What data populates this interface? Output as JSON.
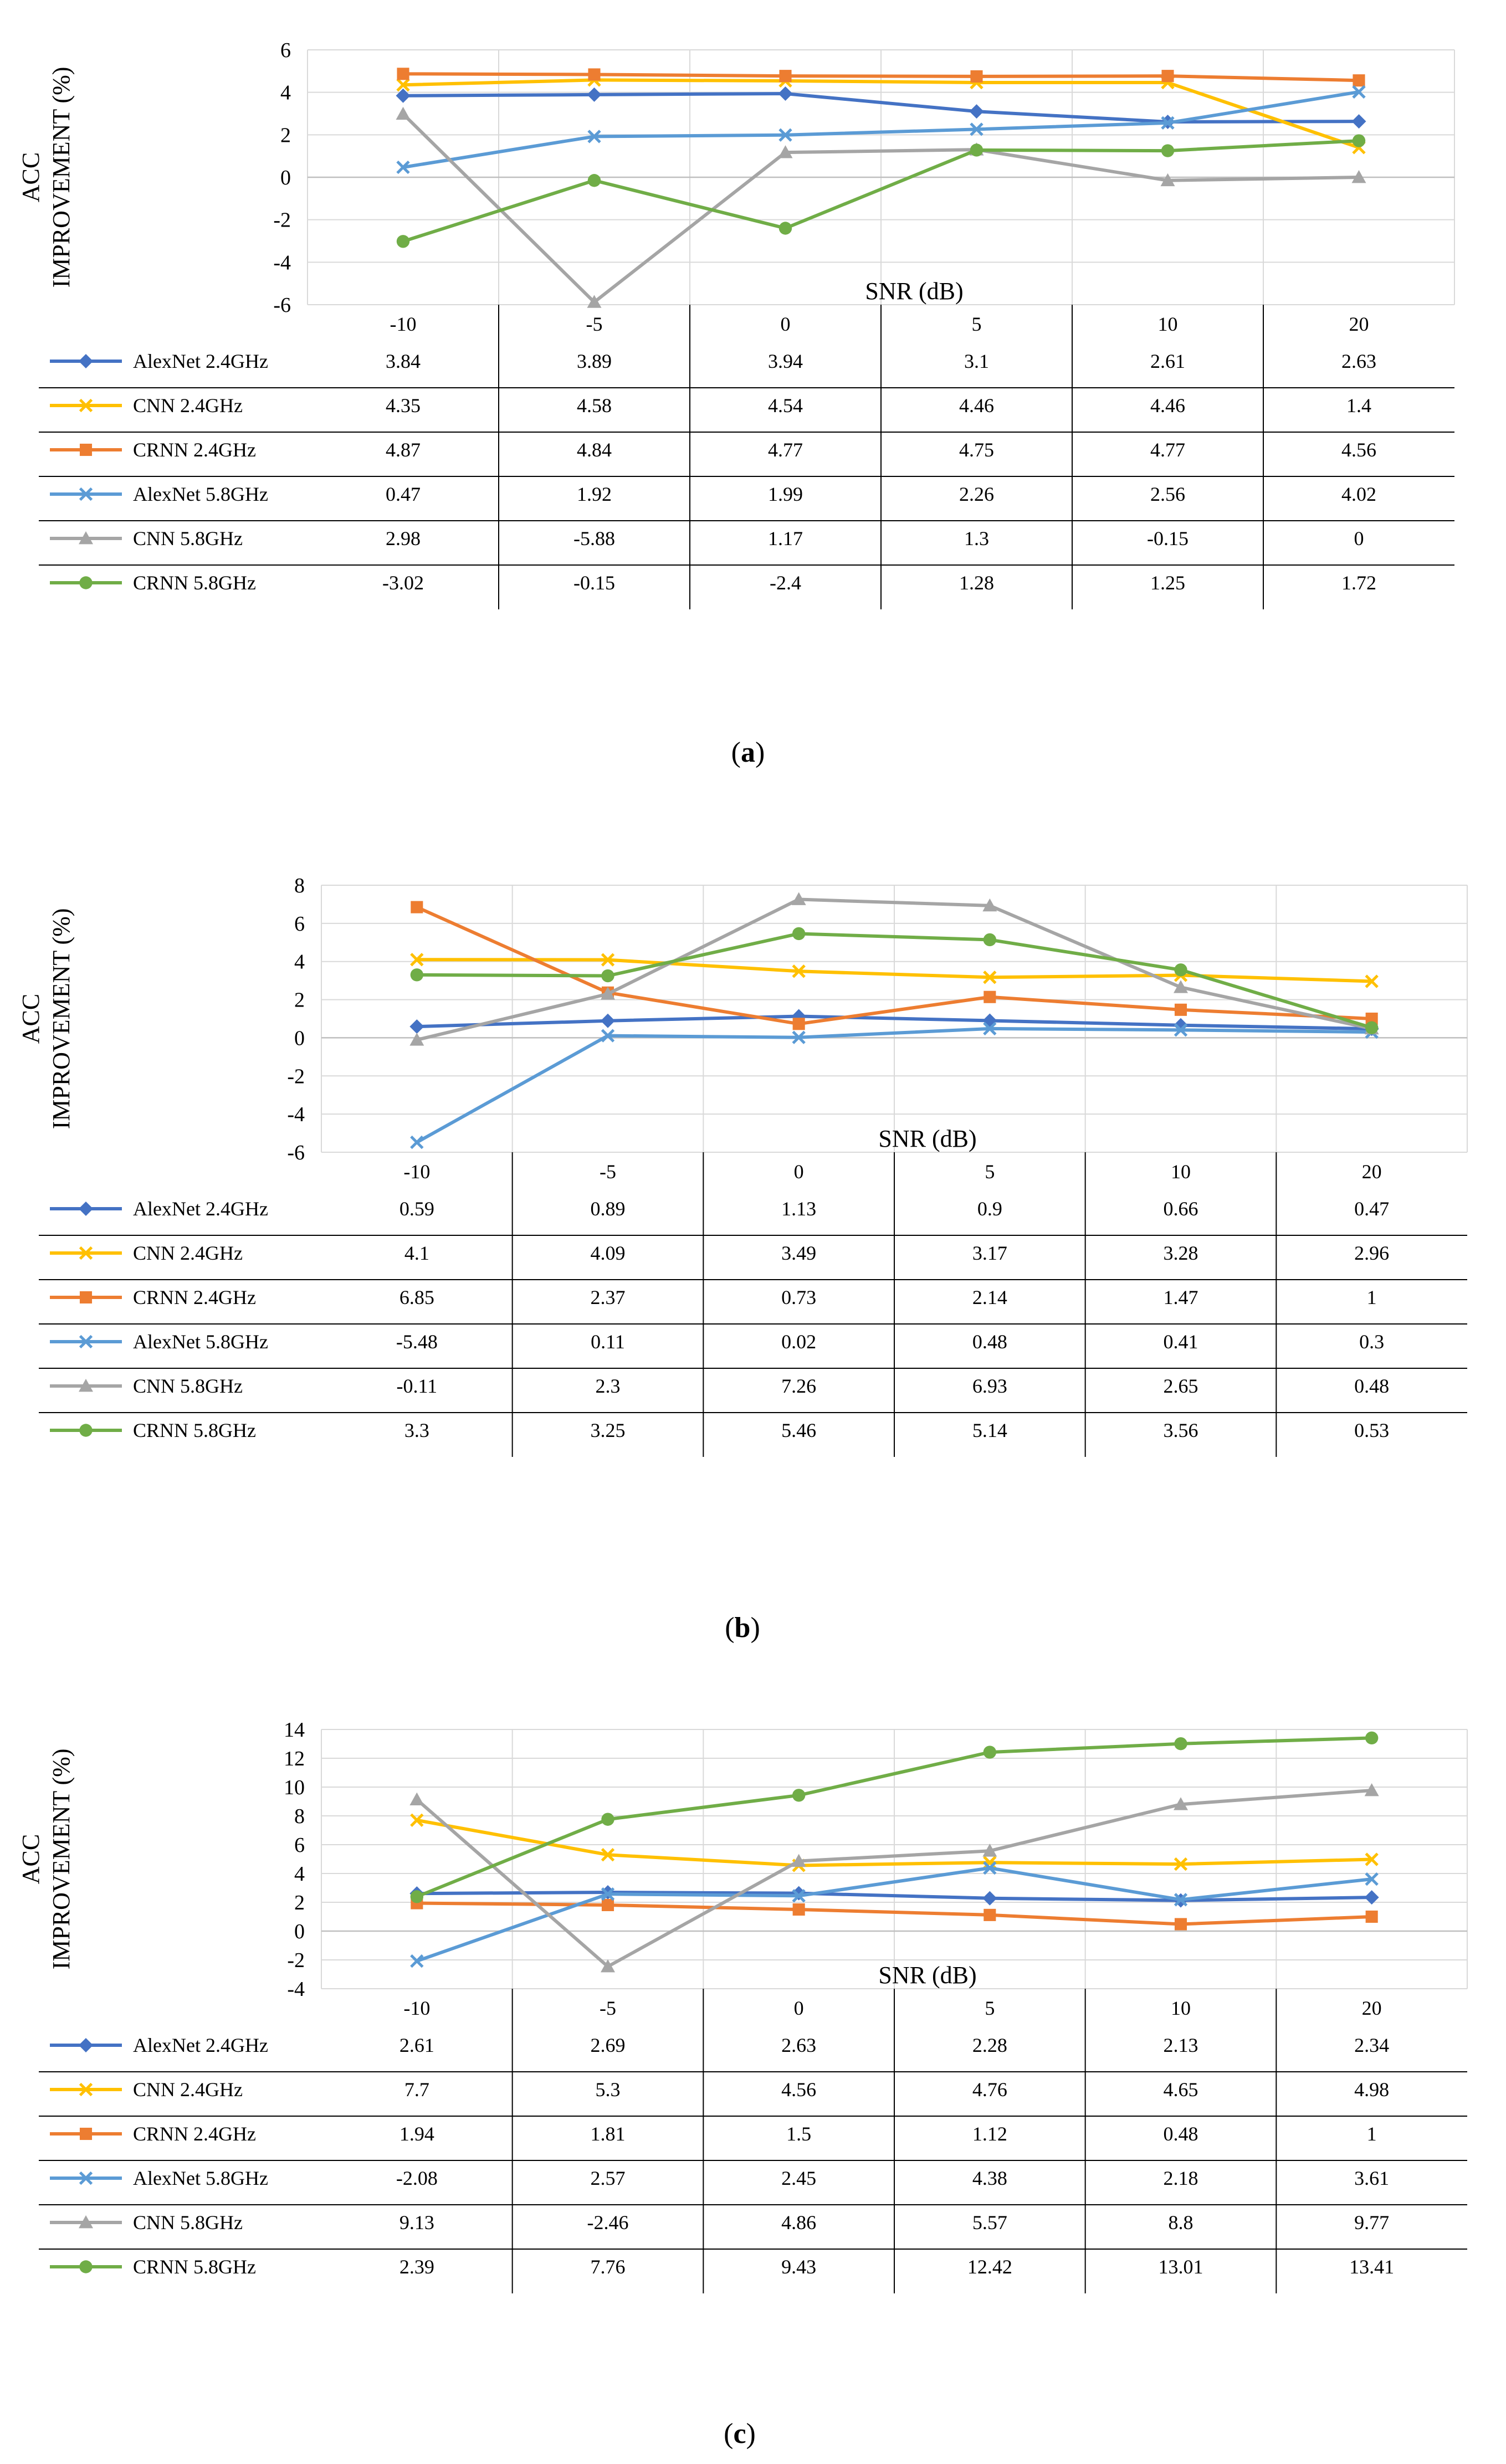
{
  "chart_data": [
    {
      "type": "line",
      "caption": "(a)",
      "caption_letter": "a",
      "ylabel_line1": "ACC",
      "ylabel_line2": "IMPROVEMENT (%)",
      "xlabel": "SNR (dB)",
      "categories": [
        "-10",
        "-5",
        "0",
        "5",
        "10",
        "20"
      ],
      "ylim": [
        -6,
        6
      ],
      "yticks": [
        -6,
        -4,
        -2,
        0,
        2,
        4,
        6
      ],
      "series": [
        {
          "name": "AlexNet 2.4GHz",
          "color": "#4472C4",
          "marker": "diamond",
          "labels": [
            "3.84",
            "3.89",
            "3.94",
            "3.1",
            "2.61",
            "2.63"
          ],
          "values": [
            3.84,
            3.89,
            3.94,
            3.1,
            2.61,
            2.63
          ]
        },
        {
          "name": "CNN 2.4GHz",
          "color": "#FFC000",
          "marker": "x",
          "labels": [
            "4.35",
            "4.58",
            "4.54",
            "4.46",
            "4.46",
            "1.4"
          ],
          "values": [
            4.35,
            4.58,
            4.54,
            4.46,
            4.46,
            1.4
          ]
        },
        {
          "name": "CRNN 2.4GHz",
          "color": "#ED7D31",
          "marker": "square",
          "labels": [
            "4.87",
            "4.84",
            "4.77",
            "4.75",
            "4.77",
            "4.56"
          ],
          "values": [
            4.87,
            4.84,
            4.77,
            4.75,
            4.77,
            4.56
          ]
        },
        {
          "name": "AlexNet 5.8GHz",
          "color": "#5B9BD5",
          "marker": "x",
          "labels": [
            "0.47",
            "1.92",
            "1.99",
            "2.26",
            "2.56",
            "4.02"
          ],
          "values": [
            0.47,
            1.92,
            1.99,
            2.26,
            2.56,
            4.02
          ]
        },
        {
          "name": "CNN 5.8GHz",
          "color": "#A5A5A5",
          "marker": "triangle",
          "labels": [
            "2.98",
            "-5.88",
            "1.17",
            "1.3",
            "-0.15",
            "0"
          ],
          "values": [
            2.98,
            -5.88,
            1.17,
            1.3,
            -0.15,
            0
          ]
        },
        {
          "name": "CRNN 5.8GHz",
          "color": "#70AD47",
          "marker": "circle",
          "labels": [
            "-3.02",
            "-0.15",
            "-2.4",
            "1.28",
            "1.25",
            "1.72"
          ],
          "values": [
            -3.02,
            -0.15,
            -2.4,
            1.28,
            1.25,
            1.72
          ]
        }
      ]
    },
    {
      "type": "line",
      "caption": "(b)",
      "caption_letter": "b",
      "ylabel_line1": "ACC",
      "ylabel_line2": "IMPROVEMENT (%)",
      "xlabel": "SNR (dB)",
      "categories": [
        "-10",
        "-5",
        "0",
        "5",
        "10",
        "20"
      ],
      "ylim": [
        -6,
        8
      ],
      "yticks": [
        -6,
        -4,
        -2,
        0,
        2,
        4,
        6,
        8
      ],
      "series": [
        {
          "name": "AlexNet 2.4GHz",
          "color": "#4472C4",
          "marker": "diamond",
          "labels": [
            "0.59",
            "0.89",
            "1.13",
            "0.9",
            "0.66",
            "0.47"
          ],
          "values": [
            0.59,
            0.89,
            1.13,
            0.9,
            0.66,
            0.47
          ]
        },
        {
          "name": "CNN 2.4GHz",
          "color": "#FFC000",
          "marker": "x",
          "labels": [
            "4.1",
            "4.09",
            "3.49",
            "3.17",
            "3.28",
            "2.96"
          ],
          "values": [
            4.1,
            4.09,
            3.49,
            3.17,
            3.28,
            2.96
          ]
        },
        {
          "name": "CRNN 2.4GHz",
          "color": "#ED7D31",
          "marker": "square",
          "labels": [
            "6.85",
            "2.37",
            "0.73",
            "2.14",
            "1.47",
            "1"
          ],
          "values": [
            6.85,
            2.37,
            0.73,
            2.14,
            1.47,
            1
          ]
        },
        {
          "name": "AlexNet 5.8GHz",
          "color": "#5B9BD5",
          "marker": "x",
          "labels": [
            "-5.48",
            "0.11",
            "0.02",
            "0.48",
            "0.41",
            "0.3"
          ],
          "values": [
            -5.48,
            0.11,
            0.02,
            0.48,
            0.41,
            0.3
          ]
        },
        {
          "name": "CNN 5.8GHz",
          "color": "#A5A5A5",
          "marker": "triangle",
          "labels": [
            "-0.11",
            "2.3",
            "7.26",
            "6.93",
            "2.65",
            "0.48"
          ],
          "values": [
            -0.11,
            2.3,
            7.26,
            6.93,
            2.65,
            0.48
          ]
        },
        {
          "name": "CRNN 5.8GHz",
          "color": "#70AD47",
          "marker": "circle",
          "labels": [
            "3.3",
            "3.25",
            "5.46",
            "5.14",
            "3.56",
            "0.53"
          ],
          "values": [
            3.3,
            3.25,
            5.46,
            5.14,
            3.56,
            0.53
          ]
        }
      ]
    },
    {
      "type": "line",
      "caption": "(c)",
      "caption_letter": "c",
      "ylabel_line1": "ACC",
      "ylabel_line2": "IMPROVEMENT (%)",
      "xlabel": "SNR (dB)",
      "categories": [
        "-10",
        "-5",
        "0",
        "5",
        "10",
        "20"
      ],
      "ylim": [
        -4,
        14
      ],
      "yticks": [
        -4,
        -2,
        0,
        2,
        4,
        6,
        8,
        10,
        12,
        14
      ],
      "series": [
        {
          "name": "AlexNet 2.4GHz",
          "color": "#4472C4",
          "marker": "diamond",
          "labels": [
            "2.61",
            "2.69",
            "2.63",
            "2.28",
            "2.13",
            "2.34"
          ],
          "values": [
            2.61,
            2.69,
            2.63,
            2.28,
            2.13,
            2.34
          ]
        },
        {
          "name": "CNN 2.4GHz",
          "color": "#FFC000",
          "marker": "x",
          "labels": [
            "7.7",
            "5.3",
            "4.56",
            "4.76",
            "4.65",
            "4.98"
          ],
          "values": [
            7.7,
            5.3,
            4.56,
            4.76,
            4.65,
            4.98
          ]
        },
        {
          "name": "CRNN 2.4GHz",
          "color": "#ED7D31",
          "marker": "square",
          "labels": [
            "1.94",
            "1.81",
            "1.5",
            "1.12",
            "0.48",
            "1"
          ],
          "values": [
            1.94,
            1.81,
            1.5,
            1.12,
            0.48,
            1
          ]
        },
        {
          "name": "AlexNet 5.8GHz",
          "color": "#5B9BD5",
          "marker": "x",
          "labels": [
            "-2.08",
            "2.57",
            "2.45",
            "4.38",
            "2.18",
            "3.61"
          ],
          "values": [
            -2.08,
            2.57,
            2.45,
            4.38,
            2.18,
            3.61
          ]
        },
        {
          "name": "CNN 5.8GHz",
          "color": "#A5A5A5",
          "marker": "triangle",
          "labels": [
            "9.13",
            "-2.46",
            "4.86",
            "5.57",
            "8.8",
            "9.77"
          ],
          "values": [
            9.13,
            -2.46,
            4.86,
            5.57,
            8.8,
            9.77
          ]
        },
        {
          "name": "CRNN 5.8GHz",
          "color": "#70AD47",
          "marker": "circle",
          "labels": [
            "2.39",
            "7.76",
            "9.43",
            "12.42",
            "13.01",
            "13.41"
          ],
          "values": [
            2.39,
            7.76,
            9.43,
            12.42,
            13.01,
            13.41
          ]
        }
      ]
    }
  ]
}
